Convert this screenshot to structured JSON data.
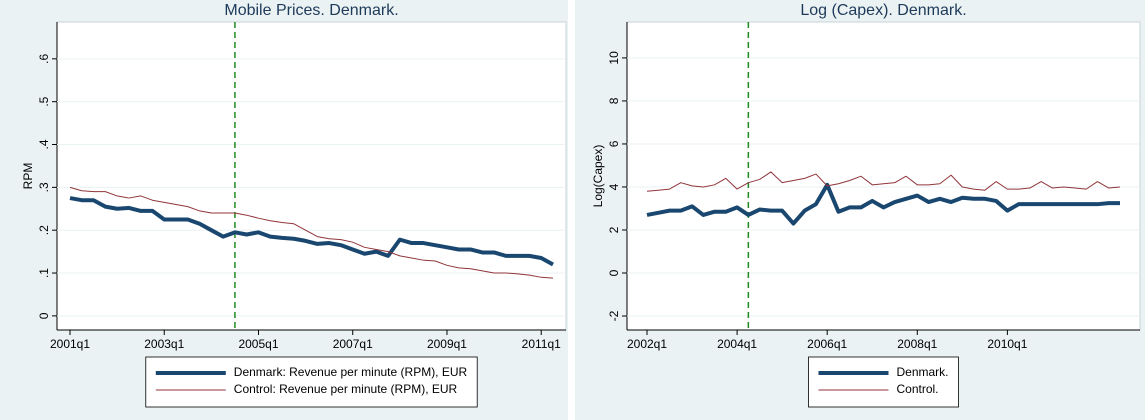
{
  "chart_data": [
    {
      "type": "line",
      "title": "Mobile Prices. Denmark.",
      "y_label": "RPM",
      "x": [
        "2001q1",
        "2001q2",
        "2001q3",
        "2001q4",
        "2002q1",
        "2002q2",
        "2002q3",
        "2002q4",
        "2003q1",
        "2003q2",
        "2003q3",
        "2003q4",
        "2004q1",
        "2004q2",
        "2004q3",
        "2004q4",
        "2005q1",
        "2005q2",
        "2005q3",
        "2005q4",
        "2006q1",
        "2006q2",
        "2006q3",
        "2006q4",
        "2007q1",
        "2007q2",
        "2007q3",
        "2007q4",
        "2008q1",
        "2008q2",
        "2008q3",
        "2008q4",
        "2009q1",
        "2009q2",
        "2009q3",
        "2009q4",
        "2010q1",
        "2010q2",
        "2010q3",
        "2010q4",
        "2011q1",
        "2011q2"
      ],
      "xticks": [
        "2001q1",
        "2003q1",
        "2005q1",
        "2007q1",
        "2009q1",
        "2011q1"
      ],
      "vline": "2004q3",
      "ylim": [
        -0.033,
        0.686
      ],
      "yticks": [
        0,
        {
          "value": 0.1,
          "label": ".1"
        },
        {
          "value": 0.2,
          "label": ".2"
        },
        {
          "value": 0.3,
          "label": ".3"
        },
        {
          "value": 0.4,
          "label": ".4"
        },
        {
          "value": 0.5,
          "label": ".5"
        },
        {
          "value": 0.6,
          "label": ".6"
        }
      ],
      "grid": true,
      "series": [
        {
          "name": "Denmark: Revenue per minute (RPM), EUR",
          "color": "#1a476f",
          "width": 4,
          "values": [
            0.275,
            0.27,
            0.27,
            0.255,
            0.25,
            0.252,
            0.245,
            0.245,
            0.225,
            0.225,
            0.225,
            0.215,
            0.2,
            0.185,
            0.195,
            0.19,
            0.195,
            0.185,
            0.182,
            0.18,
            0.175,
            0.168,
            0.17,
            0.165,
            0.155,
            0.145,
            0.15,
            0.14,
            0.178,
            0.17,
            0.17,
            0.165,
            0.16,
            0.155,
            0.155,
            0.148,
            0.148,
            0.14,
            0.14,
            0.14,
            0.135,
            0.12
          ]
        },
        {
          "name": "Control: Revenue per minute (RPM), EUR",
          "color": "#90353b",
          "width": 1,
          "values": [
            0.3,
            0.292,
            0.29,
            0.29,
            0.28,
            0.275,
            0.28,
            0.27,
            0.265,
            0.26,
            0.255,
            0.245,
            0.24,
            0.24,
            0.24,
            0.235,
            0.228,
            0.222,
            0.218,
            0.215,
            0.2,
            0.185,
            0.18,
            0.178,
            0.172,
            0.16,
            0.155,
            0.15,
            0.14,
            0.135,
            0.13,
            0.128,
            0.118,
            0.112,
            0.11,
            0.105,
            0.1,
            0.1,
            0.098,
            0.095,
            0.09,
            0.088
          ]
        }
      ]
    },
    {
      "type": "line",
      "title": "Log (Capex). Denmark.",
      "y_label": "Log(Capex)",
      "x": [
        "2002q1",
        "2002q2",
        "2002q3",
        "2002q4",
        "2003q1",
        "2003q2",
        "2003q3",
        "2003q4",
        "2004q1",
        "2004q2",
        "2004q3",
        "2004q4",
        "2005q1",
        "2005q2",
        "2005q3",
        "2005q4",
        "2006q1",
        "2006q2",
        "2006q3",
        "2006q4",
        "2007q1",
        "2007q2",
        "2007q3",
        "2007q4",
        "2008q1",
        "2008q2",
        "2008q3",
        "2008q4",
        "2009q1",
        "2009q2",
        "2009q3",
        "2009q4",
        "2010q1",
        "2010q2",
        "2010q3",
        "2010q4",
        "2011q1",
        "2011q2",
        "2011q3",
        "2011q4",
        "2012q1",
        "2012q2",
        "2012q3"
      ],
      "xticks": [
        "2002q1",
        "2004q1",
        "2006q1",
        "2008q1",
        "2010q1"
      ],
      "vline": "2004q2",
      "ylim": [
        -2.65,
        11.67
      ],
      "yticks": [
        -2,
        0,
        2,
        4,
        6,
        8,
        10
      ],
      "grid": true,
      "series": [
        {
          "name": "Denmark.",
          "color": "#1a476f",
          "width": 4,
          "values": [
            2.7,
            2.8,
            2.9,
            2.9,
            3.1,
            2.7,
            2.85,
            2.85,
            3.05,
            2.7,
            2.95,
            2.9,
            2.9,
            2.3,
            2.9,
            3.2,
            4.1,
            2.85,
            3.05,
            3.05,
            3.35,
            3.05,
            3.3,
            3.45,
            3.6,
            3.3,
            3.45,
            3.3,
            3.5,
            3.45,
            3.45,
            3.35,
            2.9,
            3.2,
            3.2,
            3.2,
            3.2,
            3.2,
            3.2,
            3.2,
            3.2,
            3.25,
            3.25
          ]
        },
        {
          "name": "Control.",
          "color": "#90353b",
          "width": 1,
          "values": [
            3.8,
            3.85,
            3.9,
            4.2,
            4.05,
            4.0,
            4.1,
            4.4,
            3.9,
            4.2,
            4.35,
            4.7,
            4.2,
            4.3,
            4.4,
            4.6,
            4.05,
            4.15,
            4.3,
            4.5,
            4.1,
            4.15,
            4.2,
            4.5,
            4.1,
            4.1,
            4.15,
            4.55,
            4.0,
            3.9,
            3.85,
            4.25,
            3.9,
            3.9,
            3.95,
            4.25,
            3.95,
            4.0,
            3.95,
            3.9,
            4.25,
            3.95,
            4.0
          ]
        }
      ]
    }
  ]
}
